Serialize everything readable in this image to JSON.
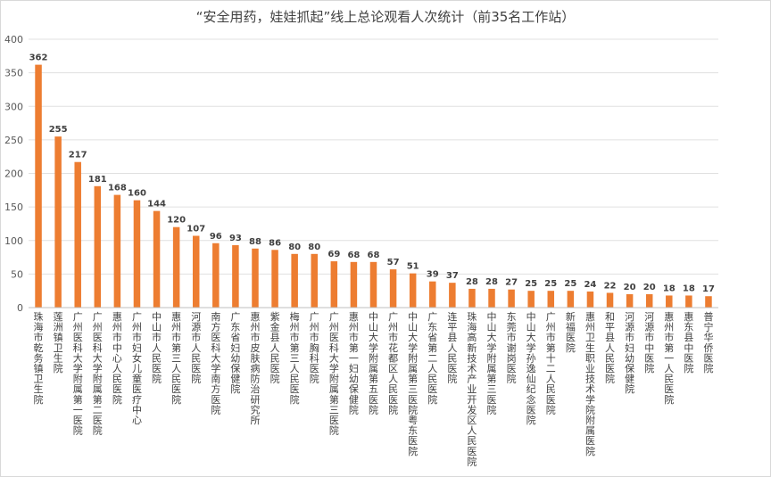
{
  "chart_data": {
    "type": "bar",
    "title": "“安全用药，娃娃抓起”线上总论观看人次统计（前35名工作站）",
    "ylim": [
      0,
      400
    ],
    "yticks": [
      0,
      50,
      100,
      150,
      200,
      250,
      300,
      350,
      400
    ],
    "grid": true,
    "bar_color": "#ED7D31",
    "categories": [
      "珠海市乾务镇卫生院",
      "莲洲镇卫生院",
      "广州医科大学附属第一医院",
      "广州医科大学附属第二医院",
      "惠州市中心人民医院",
      "广州市妇女儿童医疗中心",
      "中山市人民医院",
      "惠州市第三人民医院",
      "河源市人民医院",
      "南方医科大学南方医院",
      "广东省妇幼保健院",
      "惠州市皮肤病防治研究所",
      "紫金县人民医院",
      "梅州市第三人民医院",
      "广州市胸科医院",
      "广州医科大学附属第三医院",
      "惠州市第一妇幼保健院",
      "中山大学附属第五医院",
      "广州市花都区人民医院",
      "中山大学附属第三医院粤东医院",
      "广东省第二人民医院",
      "连平县人民医院",
      "珠海高新技术产业开发区人民医院",
      "中山大学附属第三医院",
      "东莞市谢岗医院",
      "中山大学孙逸仙纪念医院",
      "广州市第十二人民医院",
      "新福医院",
      "惠州卫生职业技术学院附属医院",
      "和平县人民医院",
      "河源市妇幼保健院",
      "河源市中医院",
      "惠州市第一人民医院",
      "惠东县中医院",
      "普宁华侨医院"
    ],
    "values": [
      362,
      255,
      217,
      181,
      168,
      160,
      144,
      120,
      107,
      96,
      93,
      88,
      86,
      80,
      80,
      69,
      68,
      68,
      57,
      51,
      39,
      37,
      28,
      28,
      27,
      25,
      25,
      25,
      24,
      22,
      20,
      20,
      18,
      18,
      17
    ]
  }
}
